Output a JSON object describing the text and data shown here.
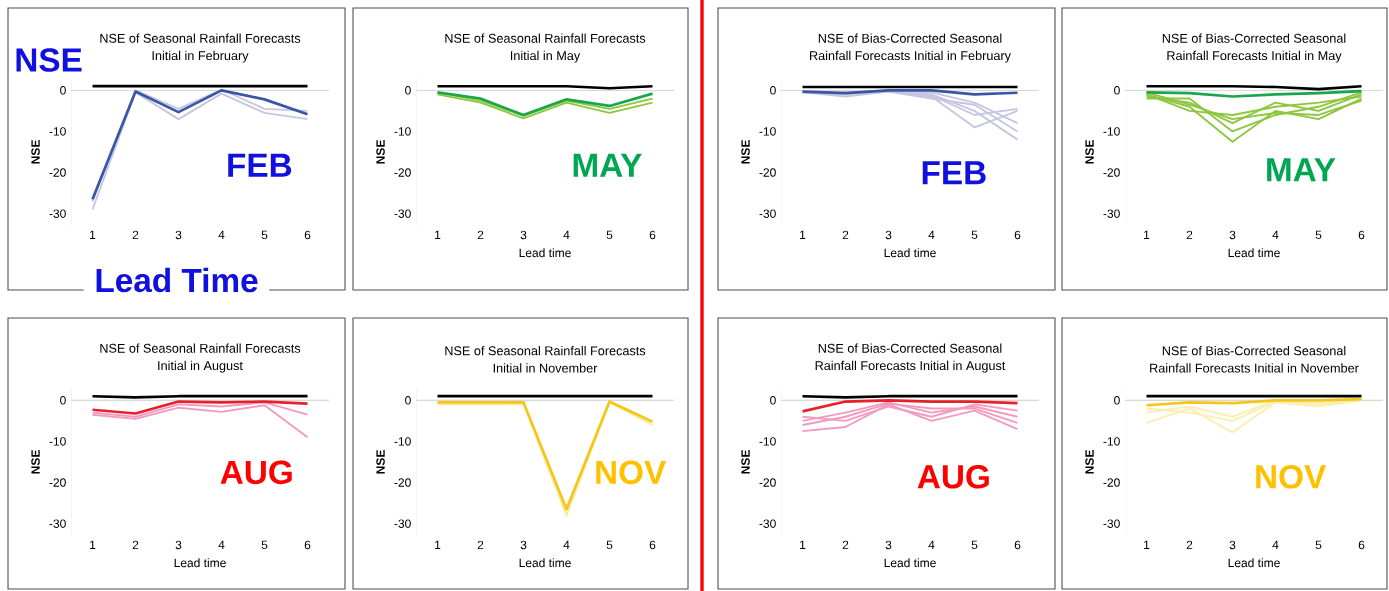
{
  "chart_data": [
    {
      "type": "line",
      "title": "NSE of Seasonal Rainfall Forecasts Initial in February",
      "ylabel": "NSE",
      "annotations": [
        "NSE",
        "Lead Time",
        "FEB"
      ],
      "categories": [
        "1",
        "2",
        "3",
        "4",
        "5",
        "6"
      ],
      "ylim": [
        -33,
        3
      ],
      "yticks": [
        0,
        -10,
        -20,
        -30
      ],
      "series": [
        {
          "color": "#000000",
          "values": [
            1,
            1,
            1,
            1,
            1,
            1
          ]
        },
        {
          "color": "#3a55a4",
          "values": [
            -26.5,
            -0.3,
            -5.3,
            0,
            -2.2,
            -5.8
          ]
        },
        {
          "color": "#c5c6e2",
          "values": [
            -29,
            -0.5,
            -7,
            -0.8,
            -5.5,
            -7
          ]
        },
        {
          "color": "#c5c6e2",
          "values": [
            -27,
            0,
            -4.5,
            0.2,
            -4.5,
            -5
          ]
        }
      ]
    },
    {
      "type": "line",
      "title": "NSE of Seasonal Rainfall Forecasts Initial in May",
      "xlabel": "Lead time",
      "ylabel": "NSE",
      "annotations": [
        "MAY"
      ],
      "categories": [
        "1",
        "2",
        "3",
        "4",
        "5",
        "6"
      ],
      "ylim": [
        -33,
        3
      ],
      "yticks": [
        0,
        -10,
        -20,
        -30
      ],
      "series": [
        {
          "color": "#000000",
          "values": [
            1,
            1,
            1,
            1,
            0.5,
            1
          ]
        },
        {
          "color": "#1aa64a",
          "values": [
            -0.5,
            -2,
            -6,
            -2.2,
            -3.8,
            -0.8
          ]
        },
        {
          "color": "#8dc63f",
          "values": [
            -1,
            -3,
            -6.8,
            -3,
            -5.5,
            -3
          ]
        },
        {
          "color": "#8dc63f",
          "values": [
            -0.5,
            -2.5,
            -6.2,
            -2.5,
            -4.5,
            -2
          ]
        }
      ]
    },
    {
      "type": "line",
      "title": "NSE of Seasonal Rainfall Forecasts Initial in August",
      "xlabel": "Lead time",
      "ylabel": "NSE",
      "annotations": [
        "AUG"
      ],
      "categories": [
        "1",
        "2",
        "3",
        "4",
        "5",
        "6"
      ],
      "ylim": [
        -33,
        3
      ],
      "yticks": [
        0,
        -10,
        -20,
        -30
      ],
      "series": [
        {
          "color": "#000000",
          "values": [
            1,
            0.7,
            1,
            1,
            1,
            1
          ]
        },
        {
          "color": "#e8202a",
          "values": [
            -2.3,
            -3.2,
            -0.3,
            -0.5,
            -0.3,
            -0.8
          ]
        },
        {
          "color": "#f29ac0",
          "values": [
            -3.5,
            -4.5,
            -1.8,
            -2.8,
            -1.2,
            -9
          ]
        },
        {
          "color": "#f29ac0",
          "values": [
            -3,
            -4,
            -1,
            -1.5,
            -0.5,
            -3.5
          ]
        }
      ]
    },
    {
      "type": "line",
      "title": "NSE of Seasonal Rainfall Forecasts Initial in November",
      "xlabel": "Lead time",
      "ylabel": "NSE",
      "annotations": [
        "NOV"
      ],
      "categories": [
        "1",
        "2",
        "3",
        "4",
        "5",
        "6"
      ],
      "ylim": [
        -33,
        3
      ],
      "yticks": [
        0,
        -10,
        -20,
        -30
      ],
      "series": [
        {
          "color": "#000000",
          "values": [
            1,
            1,
            1,
            1,
            1,
            1
          ]
        },
        {
          "color": "#f5c518",
          "values": [
            -0.5,
            -0.5,
            -0.5,
            -26.5,
            -0.3,
            -5.2
          ]
        },
        {
          "color": "#fbe89a",
          "values": [
            -1,
            -1,
            -1,
            -28,
            -0.5,
            -6
          ]
        }
      ]
    },
    {
      "type": "line",
      "title": "NSE of Bias-Corrected Seasonal Rainfall Forecasts Initial in February",
      "xlabel": "Lead time",
      "ylabel": "NSE",
      "annotations": [
        "FEB"
      ],
      "categories": [
        "1",
        "2",
        "3",
        "4",
        "5",
        "6"
      ],
      "ylim": [
        -33,
        3
      ],
      "yticks": [
        0,
        -10,
        -20,
        -30
      ],
      "series": [
        {
          "color": "#000000",
          "values": [
            0.8,
            0.8,
            0.8,
            0.8,
            0.8,
            0.8
          ]
        },
        {
          "color": "#3a55a4",
          "values": [
            -0.3,
            -0.7,
            0,
            0,
            -1,
            -0.6
          ]
        },
        {
          "color": "#c5c6e2",
          "values": [
            -0.5,
            -1.5,
            -0.3,
            -1.5,
            -9,
            -5
          ]
        },
        {
          "color": "#c5c6e2",
          "values": [
            -0.3,
            -1,
            -0.2,
            -1,
            -5,
            -12
          ]
        },
        {
          "color": "#c5c6e2",
          "values": [
            -0.2,
            -0.5,
            0,
            -0.5,
            -3,
            -8
          ]
        },
        {
          "color": "#c5c6e2",
          "values": [
            -0.4,
            -0.8,
            -0.2,
            -1.2,
            -6,
            -4.5
          ]
        },
        {
          "color": "#c5c6e2",
          "values": [
            -0.5,
            -1,
            -0.3,
            -2,
            -3.5,
            -10
          ]
        }
      ]
    },
    {
      "type": "line",
      "title": "NSE of Bias-Corrected Seasonal Rainfall Forecasts Initial in May",
      "xlabel": "Lead time",
      "ylabel": "NSE",
      "annotations": [
        "MAY"
      ],
      "categories": [
        "1",
        "2",
        "3",
        "4",
        "5",
        "6"
      ],
      "ylim": [
        -33,
        3
      ],
      "yticks": [
        0,
        -10,
        -20,
        -30
      ],
      "series": [
        {
          "color": "#000000",
          "values": [
            1,
            1,
            1,
            0.8,
            0.3,
            1
          ]
        },
        {
          "color": "#1aa64a",
          "values": [
            -0.5,
            -0.7,
            -1.5,
            -1,
            -0.7,
            -0.2
          ]
        },
        {
          "color": "#8dc63f",
          "values": [
            -1,
            -4,
            -12.5,
            -5,
            -7,
            -2
          ]
        },
        {
          "color": "#8dc63f",
          "values": [
            -1.5,
            -3,
            -8,
            -3,
            -5,
            -1
          ]
        },
        {
          "color": "#8dc63f",
          "values": [
            -1,
            -5,
            -6,
            -4,
            -3,
            -1.5
          ]
        },
        {
          "color": "#8dc63f",
          "values": [
            -2,
            -2,
            -10,
            -6,
            -4,
            -0.5
          ]
        },
        {
          "color": "#8dc63f",
          "values": [
            -0.5,
            -3.5,
            -7,
            -5.5,
            -6,
            -2.5
          ]
        }
      ]
    },
    {
      "type": "line",
      "title": "NSE of Bias-Corrected Seasonal Rainfall Forecasts Initial in August",
      "xlabel": "Lead time",
      "ylabel": "NSE",
      "annotations": [
        "AUG"
      ],
      "categories": [
        "1",
        "2",
        "3",
        "4",
        "5",
        "6"
      ],
      "ylim": [
        -33,
        3
      ],
      "yticks": [
        0,
        -10,
        -20,
        -30
      ],
      "series": [
        {
          "color": "#000000",
          "values": [
            1,
            0.7,
            1,
            1,
            1,
            1
          ]
        },
        {
          "color": "#e8202a",
          "values": [
            -2.7,
            -0.3,
            0,
            -0.3,
            -0.3,
            -0.7
          ]
        },
        {
          "color": "#f29ac0",
          "values": [
            -7.5,
            -6.5,
            -1,
            -5,
            -2.5,
            -7
          ]
        },
        {
          "color": "#f29ac0",
          "values": [
            -5,
            -3,
            -0.5,
            -3,
            -1.5,
            -4
          ]
        },
        {
          "color": "#f29ac0",
          "values": [
            -4,
            -5,
            -1.5,
            -4,
            -1,
            -2.5
          ]
        },
        {
          "color": "#f29ac0",
          "values": [
            -6,
            -4,
            -0.8,
            -2,
            -2,
            -5.5
          ]
        }
      ]
    },
    {
      "type": "line",
      "title": "NSE of Bias-Corrected Seasonal Rainfall Forecasts Initial in November",
      "xlabel": "Lead time",
      "ylabel": "NSE",
      "annotations": [
        "NOV"
      ],
      "categories": [
        "1",
        "2",
        "3",
        "4",
        "5",
        "6"
      ],
      "ylim": [
        -33,
        3
      ],
      "yticks": [
        0,
        -10,
        -20,
        -30
      ],
      "series": [
        {
          "color": "#000000",
          "values": [
            1,
            1,
            1,
            1,
            1,
            1
          ]
        },
        {
          "color": "#f5c518",
          "values": [
            -1.2,
            -0.5,
            -0.7,
            0,
            0,
            0.3
          ]
        },
        {
          "color": "#fbeeb0",
          "values": [
            -5.5,
            -2,
            -7.8,
            -0.5,
            -1.5,
            0
          ]
        },
        {
          "color": "#fbeeb0",
          "values": [
            -3,
            -1.5,
            -4,
            0,
            -0.5,
            0.2
          ]
        },
        {
          "color": "#fbeeb0",
          "values": [
            -2,
            -3,
            -5,
            -0.3,
            -1,
            0
          ]
        }
      ]
    }
  ]
}
